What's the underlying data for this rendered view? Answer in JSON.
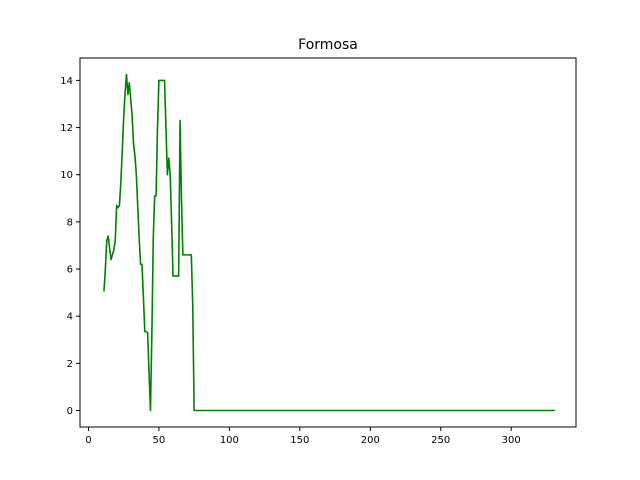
{
  "chart_data": {
    "type": "line",
    "title": "Formosa",
    "xlabel": "",
    "ylabel": "",
    "xlim": [
      -6,
      346
    ],
    "ylim": [
      -0.7,
      14.95
    ],
    "xticks": [
      0,
      50,
      100,
      150,
      200,
      250,
      300
    ],
    "yticks": [
      0,
      2,
      4,
      6,
      8,
      10,
      12,
      14
    ],
    "grid": false,
    "series": [
      {
        "color": "#008000",
        "points": [
          [
            11,
            5.05
          ],
          [
            12,
            6.0
          ],
          [
            13,
            7.2
          ],
          [
            14,
            7.4
          ],
          [
            15,
            6.9
          ],
          [
            16,
            6.4
          ],
          [
            17,
            6.6
          ],
          [
            18,
            6.8
          ],
          [
            19,
            7.2
          ],
          [
            20,
            8.7
          ],
          [
            21,
            8.6
          ],
          [
            22,
            8.7
          ],
          [
            23,
            9.7
          ],
          [
            24,
            11.0
          ],
          [
            25,
            12.4
          ],
          [
            26,
            13.5
          ],
          [
            27,
            14.25
          ],
          [
            28,
            13.4
          ],
          [
            29,
            13.9
          ],
          [
            30,
            13.2
          ],
          [
            31,
            12.5
          ],
          [
            32,
            11.3
          ],
          [
            33,
            10.8
          ],
          [
            34,
            10.0
          ],
          [
            35,
            8.6
          ],
          [
            36,
            7.3
          ],
          [
            37,
            6.2
          ],
          [
            38,
            6.2
          ],
          [
            39,
            4.8
          ],
          [
            40,
            3.35
          ],
          [
            41,
            3.35
          ],
          [
            42,
            3.3
          ],
          [
            43,
            1.6
          ],
          [
            44,
            0.0
          ],
          [
            45,
            3.2
          ],
          [
            46,
            7.3
          ],
          [
            47,
            9.1
          ],
          [
            48,
            9.1
          ],
          [
            49,
            12.0
          ],
          [
            50,
            14.0
          ],
          [
            51,
            14.0
          ],
          [
            52,
            14.0
          ],
          [
            53,
            14.0
          ],
          [
            54,
            14.0
          ],
          [
            55,
            12.0
          ],
          [
            56,
            10.0
          ],
          [
            57,
            10.7
          ],
          [
            58,
            10.0
          ],
          [
            59,
            8.0
          ],
          [
            60,
            5.7
          ],
          [
            61,
            5.7
          ],
          [
            62,
            5.7
          ],
          [
            63,
            5.7
          ],
          [
            64,
            5.7
          ],
          [
            65,
            12.3
          ],
          [
            66,
            9.0
          ],
          [
            67,
            6.6
          ],
          [
            68,
            6.6
          ],
          [
            69,
            6.6
          ],
          [
            70,
            6.6
          ],
          [
            71,
            6.6
          ],
          [
            72,
            6.6
          ],
          [
            73,
            6.6
          ],
          [
            74,
            4.5
          ],
          [
            75,
            0.0
          ],
          [
            76,
            0.0
          ],
          [
            80,
            0.0
          ],
          [
            100,
            0.0
          ],
          [
            150,
            0.0
          ],
          [
            200,
            0.0
          ],
          [
            250,
            0.0
          ],
          [
            300,
            0.0
          ],
          [
            331,
            0.0
          ]
        ]
      }
    ]
  }
}
